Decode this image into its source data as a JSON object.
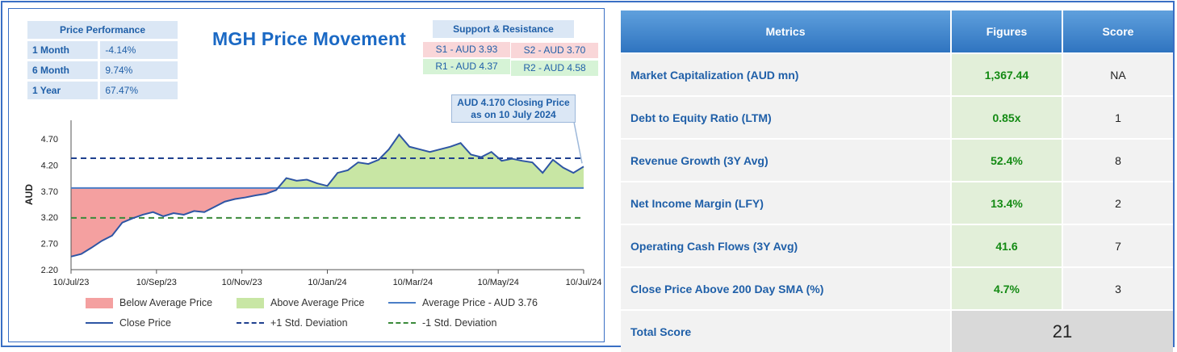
{
  "chart": {
    "title": "MGH Price Movement",
    "ylabel": "AUD",
    "callout": {
      "line1": "AUD 4.170 Closing Price",
      "line2": "as on  10 July 2024"
    }
  },
  "performance": {
    "header": "Price Performance",
    "rows": [
      {
        "label": "1 Month",
        "value": "-4.14%"
      },
      {
        "label": "6 Month",
        "value": "9.74%"
      },
      {
        "label": "1 Year",
        "value": "67.47%"
      }
    ]
  },
  "support_resistance": {
    "header": "Support & Resistance",
    "s1": "S1 - AUD 3.93",
    "s2": "S2 - AUD 3.70",
    "r1": "R1 - AUD 4.37",
    "r2": "R2 - AUD 4.58"
  },
  "legend": {
    "below": "Below Average Price",
    "above": "Above Average Price",
    "average": "Average Price - AUD 3.76",
    "close": "Close Price",
    "plus_sd": "+1 Std. Deviation",
    "minus_sd": "-1 Std. Deviation"
  },
  "colors": {
    "close": "#2e55a4",
    "average": "#4a7ec7",
    "below_fill": "#f4a0a0",
    "above_fill": "#c8e6a4",
    "plus_sd": "#20418f",
    "minus_sd": "#3a8a3a"
  },
  "chart_data": {
    "type": "line",
    "title": "MGH Price Movement",
    "xlabel": "",
    "ylabel": "AUD",
    "ylim": [
      2.2,
      4.9
    ],
    "yticks": [
      2.2,
      2.7,
      3.2,
      3.7,
      4.2,
      4.7
    ],
    "ytick_labels": [
      "2.20",
      "2.70",
      "3.20",
      "3.70",
      "4.20",
      "4.70"
    ],
    "xticks": [
      "10/Jul/23",
      "10/Sep/23",
      "10/Nov/23",
      "10/Jan/24",
      "10/Mar/24",
      "10/May/24",
      "10/Jul/24"
    ],
    "average": 3.76,
    "plus_sd": 4.33,
    "minus_sd": 3.19,
    "series": [
      {
        "name": "Close Price",
        "x": [
          0,
          0.02,
          0.04,
          0.06,
          0.08,
          0.1,
          0.12,
          0.14,
          0.16,
          0.18,
          0.2,
          0.22,
          0.24,
          0.26,
          0.28,
          0.3,
          0.32,
          0.34,
          0.36,
          0.38,
          0.4,
          0.42,
          0.44,
          0.46,
          0.48,
          0.5,
          0.52,
          0.54,
          0.56,
          0.58,
          0.6,
          0.62,
          0.64,
          0.66,
          0.68,
          0.7,
          0.72,
          0.74,
          0.76,
          0.78,
          0.8,
          0.82,
          0.84,
          0.86,
          0.88,
          0.9,
          0.92,
          0.94,
          0.96,
          0.98,
          1.0
        ],
        "values": [
          2.45,
          2.5,
          2.62,
          2.75,
          2.85,
          3.1,
          3.18,
          3.25,
          3.3,
          3.22,
          3.28,
          3.25,
          3.32,
          3.3,
          3.4,
          3.5,
          3.55,
          3.58,
          3.62,
          3.65,
          3.72,
          3.95,
          3.9,
          3.92,
          3.85,
          3.8,
          4.05,
          4.1,
          4.25,
          4.22,
          4.3,
          4.5,
          4.78,
          4.55,
          4.5,
          4.45,
          4.5,
          4.55,
          4.62,
          4.4,
          4.35,
          4.45,
          4.28,
          4.32,
          4.28,
          4.25,
          4.05,
          4.3,
          4.15,
          4.05,
          4.17
        ]
      }
    ]
  },
  "metrics": {
    "headers": {
      "metric": "Metrics",
      "figure": "Figures",
      "score": "Score"
    },
    "rows": [
      {
        "metric": "Market Capitalization (AUD mn)",
        "figure": "1,367.44",
        "score": "NA"
      },
      {
        "metric": "Debt to Equity Ratio (LTM)",
        "figure": "0.85x",
        "score": "1"
      },
      {
        "metric": "Revenue Growth (3Y Avg)",
        "figure": "52.4%",
        "score": "8"
      },
      {
        "metric": "Net Income Margin (LFY)",
        "figure": "13.4%",
        "score": "2"
      },
      {
        "metric": "Operating Cash Flows (3Y Avg)",
        "figure": "41.6",
        "score": "7"
      },
      {
        "metric": "Close Price Above 200 Day SMA (%)",
        "figure": "4.7%",
        "score": "3"
      }
    ],
    "total_label": "Total Score",
    "total_value": "21"
  }
}
